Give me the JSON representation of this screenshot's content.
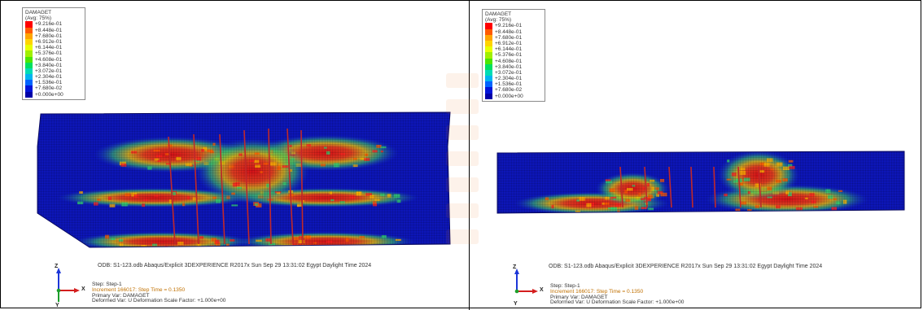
{
  "panels": [
    {
      "id": "left",
      "legend": {
        "title": "DAMAGET",
        "subtitle": "(Avg: 75%)",
        "values": [
          "+9.216e-01",
          "+8.448e-01",
          "+7.680e-01",
          "+6.912e-01",
          "+6.144e-01",
          "+5.376e-01",
          "+4.608e-01",
          "+3.840e-01",
          "+3.072e-01",
          "+2.304e-01",
          "+1.536e-01",
          "+7.680e-02",
          "+0.000e+00"
        ]
      },
      "info_line": "ODB: S1-123.odb    Abaqus/Explicit 3DEXPERIENCE R2017x    Sun Sep 29 13:31:02 Egypt Daylight Time 2024",
      "step_line": "Step: Step-1",
      "increment_line": "Increment     166017: Step Time =    0.1350",
      "primary_var_line": "Primary Var: DAMAGET",
      "deformed_line": "Deformed Var: U    Deformation Scale Factor: +1.000e+00",
      "triad": {
        "z": "Z",
        "x": "X",
        "y": "Y"
      }
    },
    {
      "id": "right",
      "legend": {
        "title": "DAMAGET",
        "subtitle": "(Avg: 75%)",
        "values": [
          "+9.216e-01",
          "+8.448e-01",
          "+7.680e-01",
          "+6.912e-01",
          "+6.144e-01",
          "+5.376e-01",
          "+4.608e-01",
          "+3.840e-01",
          "+3.072e-01",
          "+2.304e-01",
          "+1.536e-01",
          "+7.680e-02",
          "+0.000e+00"
        ]
      },
      "info_line": "ODB: S1-123.odb    Abaqus/Explicit 3DEXPERIENCE R2017x    Sun Sep 29 13:31:02 Egypt Daylight Time 2024",
      "step_line": "Step: Step-1",
      "increment_line": "Increment     166017: Step Time =    0.1350",
      "primary_var_line": "Primary Var: DAMAGET",
      "deformed_line": "Deformed Var: U    Deformation Scale Factor: +1.000e+00",
      "triad": {
        "z": "Z",
        "x": "X",
        "y": "Y"
      }
    }
  ],
  "colors": {
    "contour": [
      "#ff0000",
      "#ff5a00",
      "#ffa500",
      "#ffd400",
      "#e8ff00",
      "#a0f000",
      "#4ce600",
      "#00e060",
      "#00dcb4",
      "#00b4f0",
      "#0064ff",
      "#0014d8",
      "#0000a8"
    ],
    "mesh_base": "#0d16b8",
    "rebar": "#c0282a",
    "triad_z": "#1c36d8",
    "triad_x": "#d41e1e",
    "triad_y": "#1c9e2a"
  }
}
